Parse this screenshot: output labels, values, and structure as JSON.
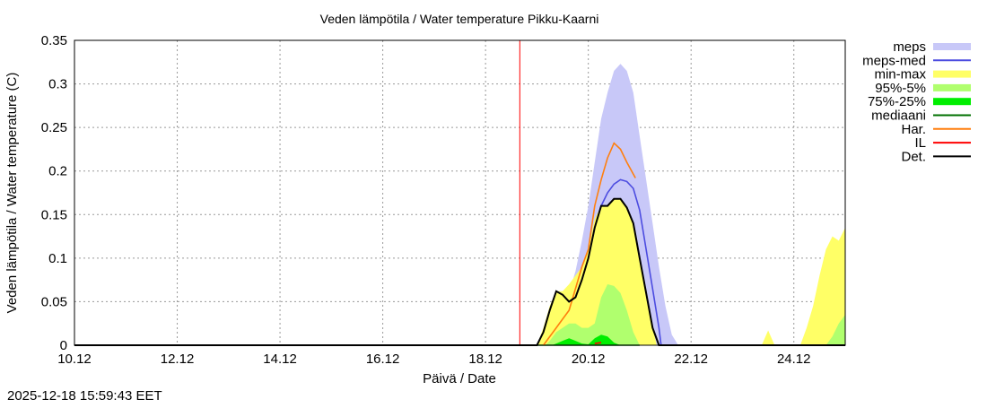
{
  "footer_timestamp": "2025-12-18 15:59:43 EET",
  "colors": {
    "meps": "#c8c8f8",
    "meps-med": "#4c4ce0",
    "min-max": "#ffff66",
    "95%-5%": "#b0ff6e",
    "75%-25%": "#00ee00",
    "mediaani": "#007000",
    "Har.": "#ff7f0e",
    "IL": "#ff0000",
    "Det.": "#000000"
  },
  "chart_data": {
    "type": "area",
    "title": "Veden lämpötila / Water temperature Pikku-Kaarni",
    "xlabel": "Päivä / Date",
    "ylabel": "Veden lämpötila / Water temperature (C)",
    "xlim": [
      "2025-12-10T00:00",
      "2025-12-25T00:00"
    ],
    "ylim": [
      0,
      0.35
    ],
    "grid": true,
    "legend_placement": "outside-right",
    "xticks": [
      {
        "t": "2025-12-10T00:00",
        "label": "10.12"
      },
      {
        "t": "2025-12-12T00:00",
        "label": "12.12"
      },
      {
        "t": "2025-12-14T00:00",
        "label": "14.12"
      },
      {
        "t": "2025-12-16T00:00",
        "label": "16.12"
      },
      {
        "t": "2025-12-18T00:00",
        "label": "18.12"
      },
      {
        "t": "2025-12-20T00:00",
        "label": "20.12"
      },
      {
        "t": "2025-12-22T00:00",
        "label": "22.12"
      },
      {
        "t": "2025-12-24T00:00",
        "label": "24.12"
      }
    ],
    "yticks": [
      0,
      0.05,
      0.1,
      0.15,
      0.2,
      0.25,
      0.3,
      0.35
    ],
    "ytick_labels": [
      "0",
      "0.05",
      "0.1",
      "0.15",
      "0.2",
      "0.25",
      "0.3",
      "0.35"
    ],
    "forecast_start_line": "2025-12-18T16:00",
    "bands": [
      {
        "name": "meps",
        "points": [
          [
            "2025-12-19T00:00",
            0
          ],
          [
            "2025-12-19T03:00",
            0
          ],
          [
            "2025-12-19T06:00",
            0.01
          ],
          [
            "2025-12-19T09:00",
            0.025
          ],
          [
            "2025-12-19T12:00",
            0.04
          ],
          [
            "2025-12-19T15:00",
            0.06
          ],
          [
            "2025-12-19T18:00",
            0.085
          ],
          [
            "2025-12-19T21:00",
            0.12
          ],
          [
            "2025-12-20T00:00",
            0.16
          ],
          [
            "2025-12-20T03:00",
            0.21
          ],
          [
            "2025-12-20T06:00",
            0.26
          ],
          [
            "2025-12-20T09:00",
            0.29
          ],
          [
            "2025-12-20T12:00",
            0.315
          ],
          [
            "2025-12-20T15:00",
            0.323
          ],
          [
            "2025-12-20T18:00",
            0.315
          ],
          [
            "2025-12-20T21:00",
            0.29
          ],
          [
            "2025-12-21T00:00",
            0.24
          ],
          [
            "2025-12-21T03:00",
            0.19
          ],
          [
            "2025-12-21T06:00",
            0.14
          ],
          [
            "2025-12-21T09:00",
            0.09
          ],
          [
            "2025-12-21T12:00",
            0.045
          ],
          [
            "2025-12-21T15:00",
            0.012
          ],
          [
            "2025-12-21T18:00",
            0
          ]
        ]
      },
      {
        "name": "min-max",
        "points": [
          [
            "2025-12-19T00:00",
            0
          ],
          [
            "2025-12-19T03:00",
            0.02
          ],
          [
            "2025-12-19T06:00",
            0.045
          ],
          [
            "2025-12-19T09:00",
            0.062
          ],
          [
            "2025-12-19T12:00",
            0.062
          ],
          [
            "2025-12-19T15:00",
            0.07
          ],
          [
            "2025-12-19T18:00",
            0.08
          ],
          [
            "2025-12-19T21:00",
            0.09
          ],
          [
            "2025-12-20T00:00",
            0.11
          ],
          [
            "2025-12-20T03:00",
            0.145
          ],
          [
            "2025-12-20T06:00",
            0.16
          ],
          [
            "2025-12-20T09:00",
            0.16
          ],
          [
            "2025-12-20T12:00",
            0.168
          ],
          [
            "2025-12-20T15:00",
            0.168
          ],
          [
            "2025-12-20T18:00",
            0.16
          ],
          [
            "2025-12-20T21:00",
            0.14
          ],
          [
            "2025-12-21T00:00",
            0.1
          ],
          [
            "2025-12-21T03:00",
            0.06
          ],
          [
            "2025-12-21T06:00",
            0.02
          ],
          [
            "2025-12-21T08:00",
            0
          ]
        ]
      },
      {
        "name": "min-max",
        "points": [
          [
            "2025-12-23T09:00",
            0
          ],
          [
            "2025-12-23T12:00",
            0.017
          ],
          [
            "2025-12-23T15:00",
            0
          ]
        ]
      },
      {
        "name": "min-max",
        "points": [
          [
            "2025-12-24T03:00",
            0
          ],
          [
            "2025-12-24T06:00",
            0.02
          ],
          [
            "2025-12-24T09:00",
            0.045
          ],
          [
            "2025-12-24T12:00",
            0.08
          ],
          [
            "2025-12-24T15:00",
            0.11
          ],
          [
            "2025-12-24T18:00",
            0.125
          ],
          [
            "2025-12-24T21:00",
            0.12
          ],
          [
            "2025-12-25T00:00",
            0.135
          ]
        ]
      },
      {
        "name": "95%-5%",
        "points": [
          [
            "2025-12-19T04:00",
            0
          ],
          [
            "2025-12-19T06:00",
            0.005
          ],
          [
            "2025-12-19T09:00",
            0.015
          ],
          [
            "2025-12-19T12:00",
            0.02
          ],
          [
            "2025-12-19T15:00",
            0.025
          ],
          [
            "2025-12-19T18:00",
            0.025
          ],
          [
            "2025-12-19T21:00",
            0.02
          ],
          [
            "2025-12-20T00:00",
            0.02
          ],
          [
            "2025-12-20T03:00",
            0.025
          ],
          [
            "2025-12-20T06:00",
            0.055
          ],
          [
            "2025-12-20T09:00",
            0.07
          ],
          [
            "2025-12-20T12:00",
            0.068
          ],
          [
            "2025-12-20T15:00",
            0.06
          ],
          [
            "2025-12-20T18:00",
            0.04
          ],
          [
            "2025-12-20T21:00",
            0.015
          ],
          [
            "2025-12-21T00:00",
            0
          ]
        ]
      },
      {
        "name": "95%-5%",
        "points": [
          [
            "2025-12-24T15:00",
            0
          ],
          [
            "2025-12-24T18:00",
            0.01
          ],
          [
            "2025-12-24T21:00",
            0.025
          ],
          [
            "2025-12-25T00:00",
            0.035
          ]
        ]
      },
      {
        "name": "75%-25%",
        "points": [
          [
            "2025-12-19T07:00",
            0
          ],
          [
            "2025-12-19T09:00",
            0.002
          ],
          [
            "2025-12-19T12:00",
            0.005
          ],
          [
            "2025-12-19T15:00",
            0.008
          ],
          [
            "2025-12-19T18:00",
            0.005
          ],
          [
            "2025-12-19T21:00",
            0.002
          ],
          [
            "2025-12-20T00:00",
            0.001
          ],
          [
            "2025-12-20T03:00",
            0.008
          ],
          [
            "2025-12-20T06:00",
            0.012
          ],
          [
            "2025-12-20T09:00",
            0.01
          ],
          [
            "2025-12-20T12:00",
            0.003
          ],
          [
            "2025-12-20T15:00",
            0
          ]
        ]
      }
    ],
    "series": [
      {
        "name": "mediaani",
        "points": [
          [
            "2025-12-19T00:00",
            0
          ],
          [
            "2025-12-21T00:00",
            0
          ]
        ]
      },
      {
        "name": "Har.",
        "points": [
          [
            "2025-12-19T03:00",
            0
          ],
          [
            "2025-12-19T09:00",
            0.02
          ],
          [
            "2025-12-19T12:00",
            0.03
          ],
          [
            "2025-12-19T15:00",
            0.04
          ],
          [
            "2025-12-19T18:00",
            0.065
          ],
          [
            "2025-12-19T21:00",
            0.09
          ],
          [
            "2025-12-20T00:00",
            0.11
          ],
          [
            "2025-12-20T03:00",
            0.16
          ],
          [
            "2025-12-20T06:00",
            0.19
          ],
          [
            "2025-12-20T09:00",
            0.215
          ],
          [
            "2025-12-20T12:00",
            0.232
          ],
          [
            "2025-12-20T15:00",
            0.225
          ],
          [
            "2025-12-20T18:00",
            0.21
          ],
          [
            "2025-12-20T22:00",
            0.192
          ]
        ]
      },
      {
        "name": "IL",
        "points": [
          [
            "2025-12-20T03:00",
            0.002
          ],
          [
            "2025-12-20T06:00",
            0.003
          ]
        ]
      },
      {
        "name": "meps-med",
        "points": [
          [
            "2025-12-20T06:00",
            0.16
          ],
          [
            "2025-12-20T09:00",
            0.175
          ],
          [
            "2025-12-20T12:00",
            0.185
          ],
          [
            "2025-12-20T15:00",
            0.19
          ],
          [
            "2025-12-20T18:00",
            0.188
          ],
          [
            "2025-12-20T21:00",
            0.18
          ],
          [
            "2025-12-21T00:00",
            0.155
          ],
          [
            "2025-12-21T03:00",
            0.11
          ],
          [
            "2025-12-21T06:00",
            0.065
          ],
          [
            "2025-12-21T09:00",
            0.02
          ],
          [
            "2025-12-21T10:00",
            0
          ]
        ]
      },
      {
        "name": "Det.",
        "points": [
          [
            "2025-12-10T00:00",
            0
          ],
          [
            "2025-12-19T00:00",
            0
          ],
          [
            "2025-12-19T03:00",
            0.015
          ],
          [
            "2025-12-19T06:00",
            0.04
          ],
          [
            "2025-12-19T09:00",
            0.062
          ],
          [
            "2025-12-19T12:00",
            0.058
          ],
          [
            "2025-12-19T15:00",
            0.05
          ],
          [
            "2025-12-19T18:00",
            0.055
          ],
          [
            "2025-12-19T21:00",
            0.075
          ],
          [
            "2025-12-20T00:00",
            0.1
          ],
          [
            "2025-12-20T03:00",
            0.135
          ],
          [
            "2025-12-20T06:00",
            0.16
          ],
          [
            "2025-12-20T09:00",
            0.16
          ],
          [
            "2025-12-20T12:00",
            0.168
          ],
          [
            "2025-12-20T15:00",
            0.168
          ],
          [
            "2025-12-20T18:00",
            0.158
          ],
          [
            "2025-12-20T21:00",
            0.14
          ],
          [
            "2025-12-21T00:00",
            0.1
          ],
          [
            "2025-12-21T03:00",
            0.06
          ],
          [
            "2025-12-21T06:00",
            0.02
          ],
          [
            "2025-12-21T09:00",
            0
          ],
          [
            "2025-12-25T00:00",
            0
          ]
        ]
      }
    ],
    "legend": [
      {
        "name": "meps",
        "kind": "band"
      },
      {
        "name": "meps-med",
        "kind": "line"
      },
      {
        "name": "min-max",
        "kind": "band"
      },
      {
        "name": "95%-5%",
        "kind": "band"
      },
      {
        "name": "75%-25%",
        "kind": "band"
      },
      {
        "name": "mediaani",
        "kind": "line"
      },
      {
        "name": "Har.",
        "kind": "line"
      },
      {
        "name": "IL",
        "kind": "line"
      },
      {
        "name": "Det.",
        "kind": "line"
      }
    ]
  }
}
